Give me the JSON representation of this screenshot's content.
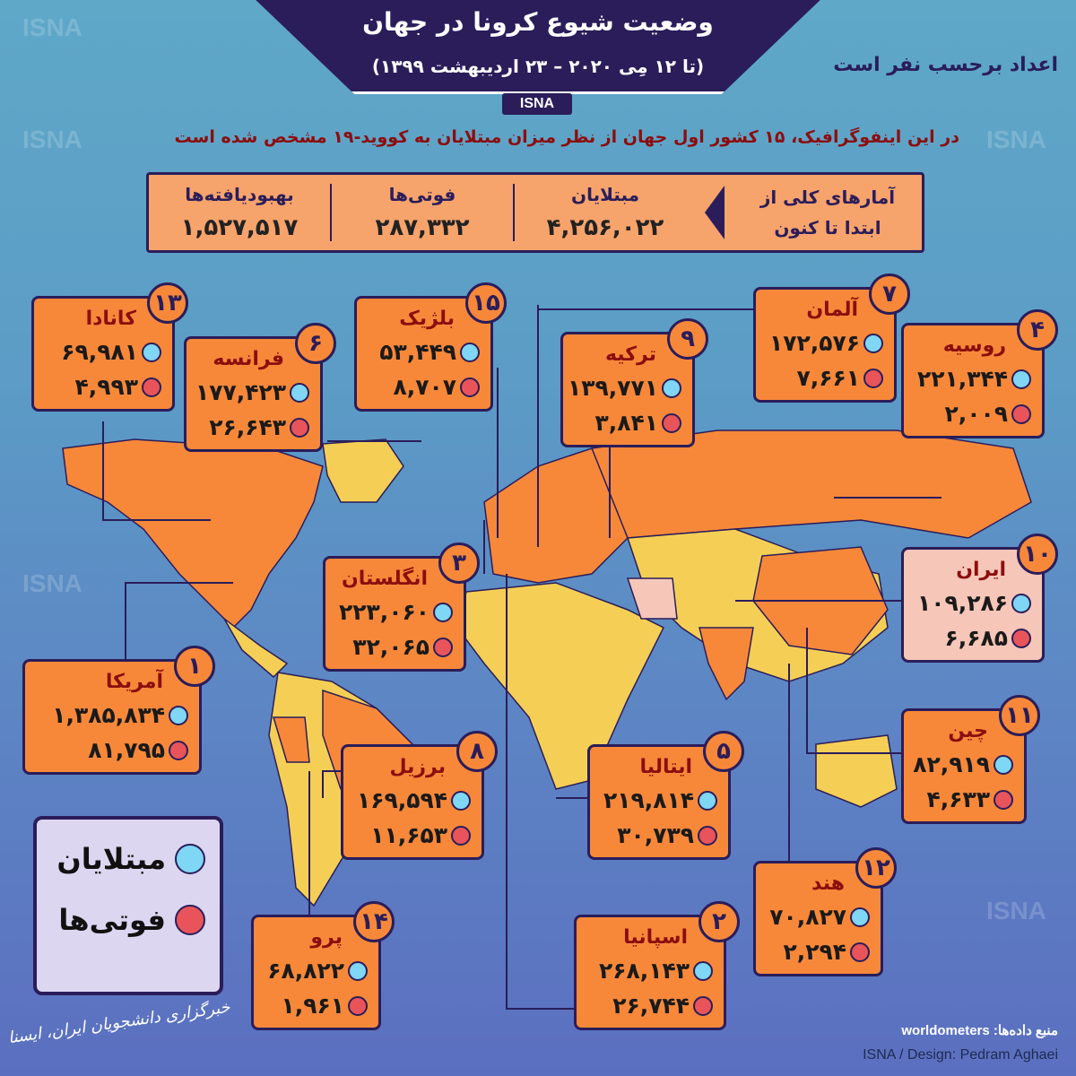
{
  "header": {
    "title": "وضعیت شیوع کرونا در جهان",
    "subtitle": "(تا ۱۲ مِی ۲۰۲۰ – ۲۳ اردیبهشت ۱۳۹۹)",
    "agency": "ISNA",
    "units_note": "اعداد برحسب نفر است",
    "intro": "در این اینفوگرافیک، ۱۵ کشور اول جهان از نظر میزان مبتلایان به کووید-۱۹ مشخص شده است"
  },
  "summary": {
    "label_line1": "آمارهای کلی از",
    "label_line2": "ابتدا تا کنون",
    "cases_label": "مبتلایان",
    "cases": "۴,۲۵۶,۰۲۲",
    "deaths_label": "فوتی‌ها",
    "deaths": "۲۸۷,۳۳۲",
    "recovered_label": "بهبودیافته‌ها",
    "recovered": "۱,۵۲۷,۵۱۷"
  },
  "countries": [
    {
      "rank": "۱۳",
      "name": "کانادا",
      "cases": "۶۹,۹۸۱",
      "deaths": "۴,۹۹۳"
    },
    {
      "rank": "۶",
      "name": "فرانسه",
      "cases": "۱۷۷,۴۲۳",
      "deaths": "۲۶,۶۴۳"
    },
    {
      "rank": "۱۵",
      "name": "بلژیک",
      "cases": "۵۳,۴۴۹",
      "deaths": "۸,۷۰۷"
    },
    {
      "rank": "۹",
      "name": "ترکیه",
      "cases": "۱۳۹,۷۷۱",
      "deaths": "۳,۸۴۱"
    },
    {
      "rank": "۷",
      "name": "آلمان",
      "cases": "۱۷۲,۵۷۶",
      "deaths": "۷,۶۶۱"
    },
    {
      "rank": "۴",
      "name": "روسیه",
      "cases": "۲۲۱,۳۴۴",
      "deaths": "۲,۰۰۹"
    },
    {
      "rank": "۱۰",
      "name": "ایران",
      "cases": "۱۰۹,۲۸۶",
      "deaths": "۶,۶۸۵",
      "highlight": true
    },
    {
      "rank": "۳",
      "name": "انگلستان",
      "cases": "۲۲۳,۰۶۰",
      "deaths": "۳۲,۰۶۵"
    },
    {
      "rank": "۱",
      "name": "آمریکا",
      "cases": "۱,۳۸۵,۸۳۴",
      "deaths": "۸۱,۷۹۵"
    },
    {
      "rank": "۸",
      "name": "برزیل",
      "cases": "۱۶۹,۵۹۴",
      "deaths": "۱۱,۶۵۳"
    },
    {
      "rank": "۵",
      "name": "ایتالیا",
      "cases": "۲۱۹,۸۱۴",
      "deaths": "۳۰,۷۳۹"
    },
    {
      "rank": "۱۱",
      "name": "چین",
      "cases": "۸۲,۹۱۹",
      "deaths": "۴,۶۳۳"
    },
    {
      "rank": "۱۲",
      "name": "هند",
      "cases": "۷۰,۸۲۷",
      "deaths": "۲,۲۹۴"
    },
    {
      "rank": "۱۴",
      "name": "پرو",
      "cases": "۶۸,۸۲۲",
      "deaths": "۱,۹۶۱"
    },
    {
      "rank": "۲",
      "name": "اسپانیا",
      "cases": "۲۶۸,۱۴۳",
      "deaths": "۲۶,۷۴۴"
    }
  ],
  "legend": {
    "cases": "مبتلایان",
    "deaths": "فوتی‌ها"
  },
  "footer": {
    "source": "منبع داده‌ها: worldometers",
    "credit": "ISNA / Design: Pedram Aghaei",
    "logo_text": "خبرگزاری دانشجویان ایران، ایسنا"
  },
  "colors": {
    "cases": "#7fd6f5",
    "deaths": "#e8545a",
    "card": "#f7883a",
    "highlight_card": "#f6c6b8",
    "accent": "#2a1d5a",
    "affected_land": "#f7883a",
    "other_land": "#f5cf55"
  }
}
